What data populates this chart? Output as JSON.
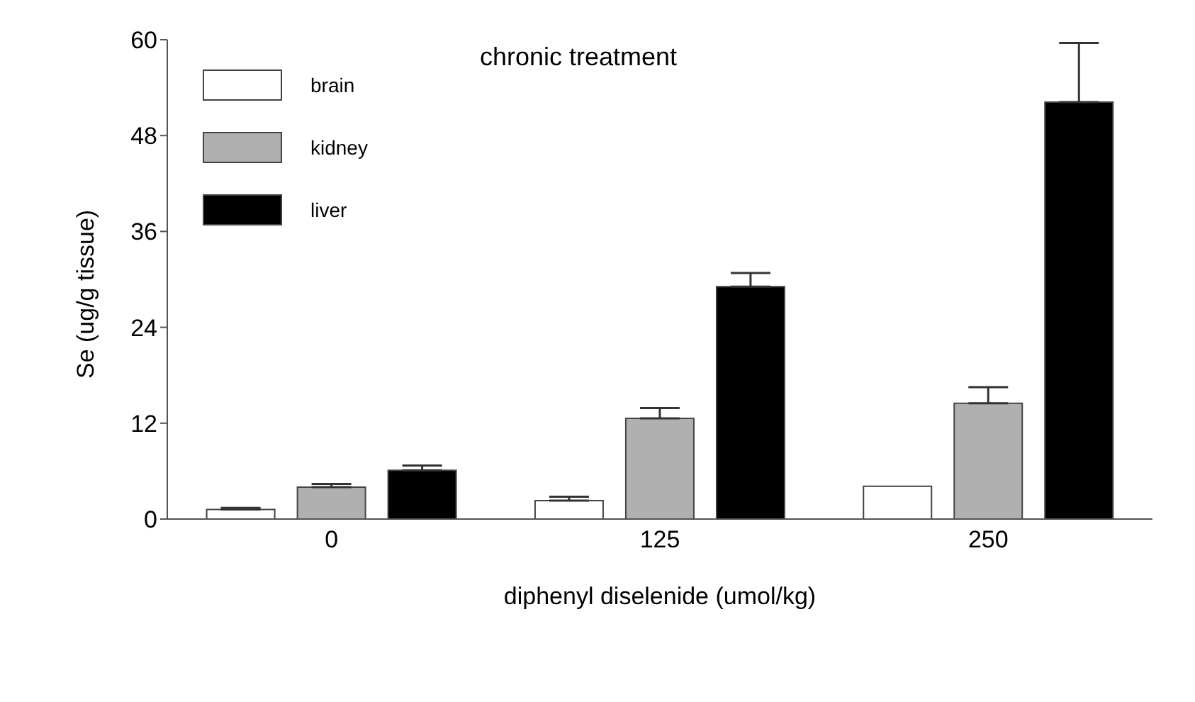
{
  "chart_data": {
    "type": "bar",
    "title": "chronic treatment",
    "xlabel": "diphenyl diselenide  (umol/kg)",
    "ylabel": "Se (ug/g tissue)",
    "categories": [
      "0",
      "125",
      "250"
    ],
    "series": [
      {
        "name": "brain",
        "color": "#ffffff",
        "values": [
          1.2,
          2.3,
          4.1
        ],
        "errors": [
          [
            1.2,
            1.4
          ],
          [
            2.3,
            2.8
          ],
          null
        ]
      },
      {
        "name": "kidney",
        "color": "#b0b0b0",
        "values": [
          4.0,
          12.6,
          14.5
        ],
        "errors": [
          [
            4.0,
            4.4
          ],
          [
            12.6,
            13.9
          ],
          [
            14.5,
            16.5
          ]
        ]
      },
      {
        "name": "liver",
        "color": "#000000",
        "values": [
          6.1,
          29.1,
          52.2
        ],
        "errors": [
          [
            6.1,
            6.7
          ],
          [
            29.1,
            30.8
          ],
          [
            52.2,
            59.6
          ]
        ]
      }
    ],
    "ylim": [
      0,
      60
    ],
    "yticks": [
      0,
      12,
      24,
      36,
      48,
      60
    ],
    "grid": false,
    "legend": "top left"
  }
}
